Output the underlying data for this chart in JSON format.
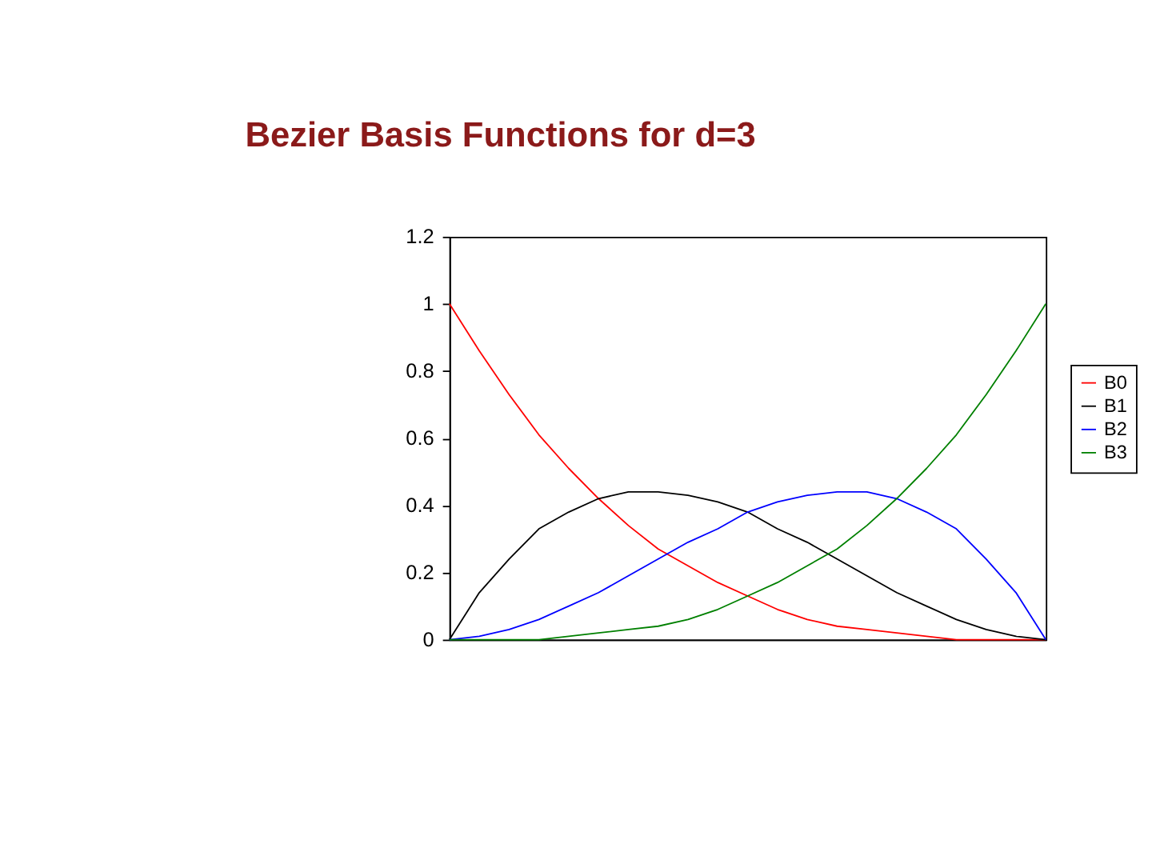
{
  "chart_data": {
    "type": "line",
    "title": "Bezier Basis Functions for d=3",
    "categories": [
      null,
      null,
      null,
      null,
      null,
      null,
      null,
      null,
      null,
      null,
      null,
      null,
      null,
      null,
      null,
      null,
      null,
      null,
      null,
      null,
      null
    ],
    "series": [
      {
        "name": "B0",
        "color": "#ff0000",
        "values": [
          1,
          0.86,
          0.73,
          0.61,
          0.51,
          0.42,
          0.34,
          0.27,
          0.22,
          0.17,
          0.13,
          0.09,
          0.06,
          0.04,
          0.03,
          0.02,
          0.01,
          0,
          0,
          0,
          0
        ]
      },
      {
        "name": "B1",
        "color": "#000000",
        "values": [
          0,
          0.14,
          0.24,
          0.33,
          0.38,
          0.42,
          0.44,
          0.44,
          0.43,
          0.41,
          0.38,
          0.33,
          0.29,
          0.24,
          0.19,
          0.14,
          0.1,
          0.06,
          0.03,
          0.01,
          0
        ]
      },
      {
        "name": "B2",
        "color": "#0000ff",
        "values": [
          0,
          0.01,
          0.03,
          0.06,
          0.1,
          0.14,
          0.19,
          0.24,
          0.29,
          0.33,
          0.38,
          0.41,
          0.43,
          0.44,
          0.44,
          0.42,
          0.38,
          0.33,
          0.24,
          0.14,
          0
        ]
      },
      {
        "name": "B3",
        "color": "#008000",
        "values": [
          0,
          0,
          0,
          0,
          0.01,
          0.02,
          0.03,
          0.04,
          0.06,
          0.09,
          0.13,
          0.17,
          0.22,
          0.27,
          0.34,
          0.42,
          0.51,
          0.61,
          0.73,
          0.86,
          1
        ]
      }
    ],
    "ylim": [
      0,
      1.2
    ],
    "yticks": [
      0,
      0.2,
      0.4,
      0.6,
      0.8,
      1,
      1.2
    ],
    "grid": false,
    "legend": "right",
    "tick_labels": "y"
  }
}
